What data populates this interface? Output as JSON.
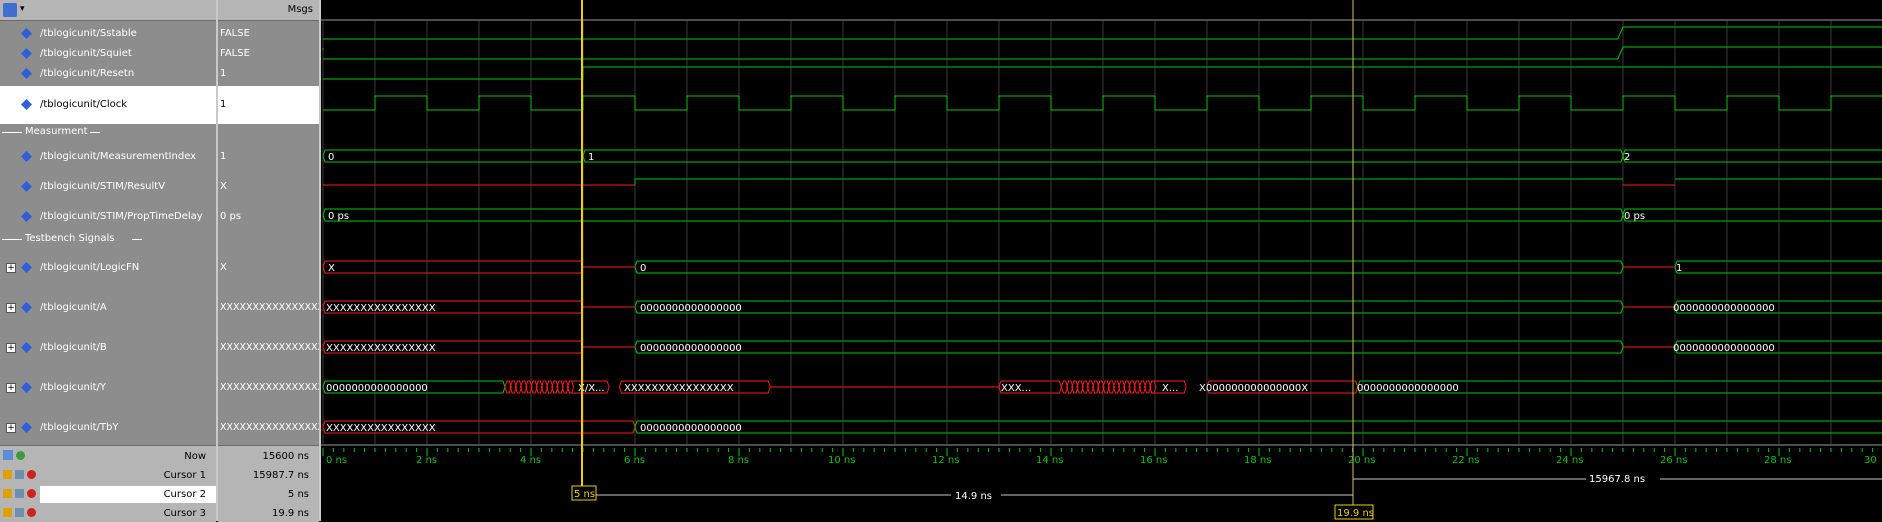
{
  "header": {
    "msgs_label": "Msgs"
  },
  "signals": [
    {
      "name": "/tblogicunit/Sstable",
      "value": "FALSE",
      "expandable": false,
      "selected": false
    },
    {
      "name": "/tblogicunit/Squiet",
      "value": "FALSE",
      "expandable": false,
      "selected": false
    },
    {
      "name": "/tblogicunit/Resetn",
      "value": "1",
      "expandable": false,
      "selected": false
    },
    {
      "name": "/tblogicunit/Clock",
      "value": "1",
      "expandable": false,
      "selected": true
    },
    {
      "name": "/tblogicunit/MeasurementIndex",
      "value": "1",
      "expandable": false,
      "selected": false
    },
    {
      "name": "/tblogicunit/STIM/ResultV",
      "value": "X",
      "expandable": false,
      "selected": false
    },
    {
      "name": "/tblogicunit/STIM/PropTimeDelay",
      "value": "0 ps",
      "expandable": false,
      "selected": false
    },
    {
      "name": "/tblogicunit/LogicFN",
      "value": "X",
      "expandable": true,
      "selected": false
    },
    {
      "name": "/tblogicunit/A",
      "value": "XXXXXXXXXXXXXXXX",
      "expandable": true,
      "selected": false
    },
    {
      "name": "/tblogicunit/B",
      "value": "XXXXXXXXXXXXXXXX",
      "expandable": true,
      "selected": false
    },
    {
      "name": "/tblogicunit/Y",
      "value": "XXXXXXXXXXXXXXXX",
      "expandable": true,
      "selected": false
    },
    {
      "name": "/tblogicunit/TbY",
      "value": "XXXXXXXXXXXXXXXX",
      "expandable": true,
      "selected": false
    }
  ],
  "dividers": [
    {
      "label": "Measurment"
    },
    {
      "label": "Testbench Signals"
    }
  ],
  "cursors": {
    "now_label": "Now",
    "now_value": "15600 ns",
    "items": [
      {
        "label": "Cursor 1",
        "value": "15987.7 ns"
      },
      {
        "label": "Cursor 2",
        "value": "5 ns"
      },
      {
        "label": "Cursor 3",
        "value": "19.9 ns"
      }
    ]
  },
  "wave_labels": {
    "mi_0": "0",
    "mi_1": "1",
    "mi_2": "2",
    "ptd_a": "0 ps",
    "ptd_b": "0 ps",
    "logic_x": "X",
    "logic_0": "0",
    "logic_1": "1",
    "a_x": "XXXXXXXXXXXXXXXX",
    "a_0": "0000000000000000",
    "a_0b": "0000000000000000",
    "b_x": "XXXXXXXXXXXXXXXX",
    "b_0": "0000000000000000",
    "b_0b": "0000000000000000",
    "y_0": "0000000000000000",
    "y_xx": "X/X...",
    "y_xlong": "XXXXXXXXXXXXXXXX",
    "y_xxx": "XXX...",
    "y_x2": "X...",
    "y_x0": "X000000000000000X",
    "y_0b": "0000000000000000",
    "tby_x": "XXXXXXXXXXXXXXXX",
    "tby_0": "0000000000000000"
  },
  "timeline": {
    "ticks": [
      "0 ns",
      "2 ns",
      "4 ns",
      "6 ns",
      "8 ns",
      "10 ns",
      "12 ns",
      "14 ns",
      "16 ns",
      "18 ns",
      "20 ns",
      "22 ns",
      "24 ns",
      "26 ns",
      "28 ns",
      "30"
    ],
    "c2_label": "5 ns",
    "c3_label": "19.9 ns",
    "delta_23": "14.9 ns",
    "delta_31": "15967.8 ns"
  },
  "colors": {
    "wave_green": "#00c800",
    "wave_red": "#ff1a1a",
    "cursor_yellow": "#f0d000",
    "grid": "#3a3a3a"
  }
}
